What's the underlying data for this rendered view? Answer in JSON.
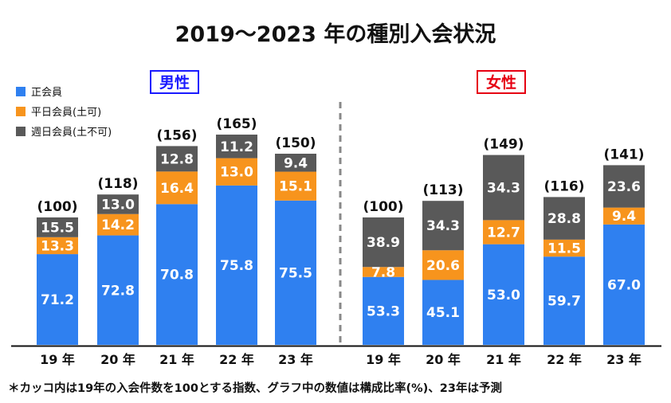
{
  "title": "2019～2023 年の種別入会状況",
  "footnote": "＊カッコ内は19年の入会件数を100とする指数、グラフ中の数値は構成比率(%)、23年は予測",
  "colors": {
    "regular": "#2f80f0",
    "weekday": "#f7941d",
    "weekly": "#595959",
    "male": "#1a1aff",
    "female": "#e60012"
  },
  "chart_data": {
    "type": "bar",
    "stacked": true,
    "title": "2019～2023 年の種別入会状況",
    "categories": [
      "19 年",
      "20 年",
      "21 年",
      "22 年",
      "23 年"
    ],
    "legend": [
      {
        "key": "regular",
        "label": "正会員"
      },
      {
        "key": "weekday",
        "label": "平日会員(土可)"
      },
      {
        "key": "weekly",
        "label": "週日会員(土不可)"
      }
    ],
    "groups": [
      {
        "name": "男性",
        "index_labels": [
          "(100)",
          "(118)",
          "(156)",
          "(165)",
          "(150)"
        ],
        "index": [
          100,
          118,
          156,
          165,
          150
        ],
        "series": [
          {
            "key": "regular",
            "name": "正会員",
            "values": [
              71.2,
              72.8,
              70.8,
              75.8,
              75.5
            ]
          },
          {
            "key": "weekday",
            "name": "平日会員(土可)",
            "values": [
              13.3,
              14.2,
              16.4,
              13.0,
              15.1
            ]
          },
          {
            "key": "weekly",
            "name": "週日会員(土不可)",
            "values": [
              15.5,
              13.0,
              12.8,
              11.2,
              9.4
            ]
          }
        ]
      },
      {
        "name": "女性",
        "index_labels": [
          "(100)",
          "(113)",
          "(149)",
          "(116)",
          "(141)"
        ],
        "index": [
          100,
          113,
          149,
          116,
          141
        ],
        "series": [
          {
            "key": "regular",
            "name": "正会員",
            "values": [
              53.3,
              45.1,
              53.0,
              59.7,
              67.0
            ]
          },
          {
            "key": "weekday",
            "name": "平日会員(土可)",
            "values": [
              7.8,
              20.6,
              12.7,
              11.5,
              9.4
            ]
          },
          {
            "key": "weekly",
            "name": "週日会員(土不可)",
            "values": [
              38.9,
              34.3,
              34.3,
              28.8,
              23.6
            ]
          }
        ]
      }
    ],
    "legend_position": "top-left",
    "grid": false
  }
}
